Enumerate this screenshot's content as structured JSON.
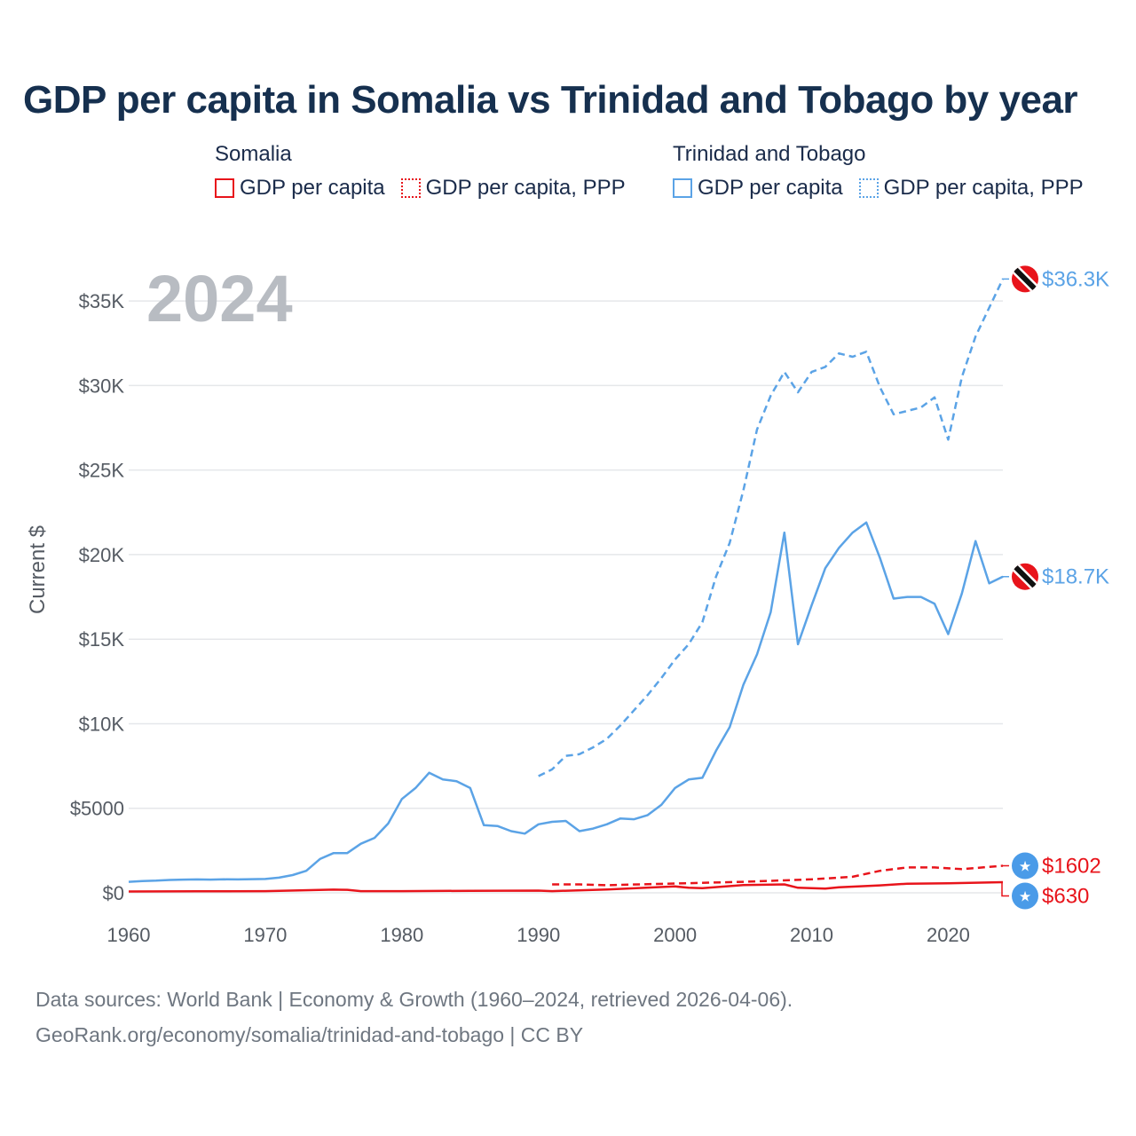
{
  "title": "GDP per capita in Somalia vs Trinidad and Tobago by year",
  "legend": {
    "somalia": {
      "name": "Somalia",
      "gdp": "GDP per capita",
      "ppp": "GDP per capita, PPP",
      "color": "#e8141b"
    },
    "tt": {
      "name": "Trinidad and Tobago",
      "gdp": "GDP per capita",
      "ppp": "GDP per capita, PPP",
      "color": "#5ba3e6"
    }
  },
  "footer": {
    "line1": "Data sources: World Bank | Economy & Growth (1960–2024, retrieved 2026-04-06).",
    "line2": "GeoRank.org/economy/somalia/trinidad-and-tobago | CC BY"
  },
  "chart_data": {
    "type": "line",
    "title": "GDP per capita in Somalia vs Trinidad and Tobago by year",
    "year_label": "2024",
    "ylabel": "Current $",
    "xlabel": "",
    "xlim": [
      1960,
      2024
    ],
    "ylim": [
      0,
      37000
    ],
    "x_ticks": [
      "1960",
      "1970",
      "1980",
      "1990",
      "2000",
      "2010",
      "2020"
    ],
    "y_ticks": [
      {
        "value": 0,
        "label": "$0"
      },
      {
        "value": 5000,
        "label": "$5000"
      },
      {
        "value": 10000,
        "label": "$10K"
      },
      {
        "value": 15000,
        "label": "$15K"
      },
      {
        "value": 20000,
        "label": "$20K"
      },
      {
        "value": 25000,
        "label": "$25K"
      },
      {
        "value": 30000,
        "label": "$30K"
      },
      {
        "value": 35000,
        "label": "$35K"
      }
    ],
    "grid": true,
    "series": [
      {
        "name": "Trinidad and Tobago — GDP per capita",
        "country": "tt",
        "style": "solid",
        "color": "#5ba3e6",
        "end_label": "$18.7K",
        "x": [
          1960,
          1961,
          1962,
          1963,
          1964,
          1965,
          1966,
          1967,
          1968,
          1969,
          1970,
          1971,
          1972,
          1973,
          1974,
          1975,
          1976,
          1977,
          1978,
          1979,
          1980,
          1981,
          1982,
          1983,
          1984,
          1985,
          1986,
          1987,
          1988,
          1989,
          1990,
          1991,
          1992,
          1993,
          1994,
          1995,
          1996,
          1997,
          1998,
          1999,
          2000,
          2001,
          2002,
          2003,
          2004,
          2005,
          2006,
          2007,
          2008,
          2009,
          2010,
          2011,
          2012,
          2013,
          2014,
          2015,
          2016,
          2017,
          2018,
          2019,
          2020,
          2021,
          2022,
          2023,
          2024
        ],
        "values": [
          650,
          700,
          720,
          760,
          780,
          790,
          780,
          800,
          790,
          810,
          820,
          900,
          1050,
          1300,
          2000,
          2350,
          2350,
          2900,
          3250,
          4100,
          5550,
          6200,
          7100,
          6700,
          6600,
          6200,
          4000,
          3950,
          3650,
          3500,
          4050,
          4200,
          4250,
          3650,
          3800,
          4050,
          4400,
          4350,
          4600,
          5200,
          6200,
          6700,
          6800,
          8400,
          9800,
          12300,
          14100,
          16600,
          21300,
          14700,
          17000,
          19200,
          20400,
          21300,
          21900,
          19800,
          17400,
          17500,
          17500,
          17100,
          15300,
          17700,
          20800,
          18300,
          18700
        ]
      },
      {
        "name": "Trinidad and Tobago — GDP per capita, PPP",
        "country": "tt",
        "style": "dashed",
        "color": "#5ba3e6",
        "end_label": "$36.3K",
        "x": [
          1990,
          1991,
          1992,
          1993,
          1994,
          1995,
          1996,
          1997,
          1998,
          1999,
          2000,
          2001,
          2002,
          2003,
          2004,
          2005,
          2006,
          2007,
          2008,
          2009,
          2010,
          2011,
          2012,
          2013,
          2014,
          2015,
          2016,
          2017,
          2018,
          2019,
          2020,
          2021,
          2022,
          2023,
          2024
        ],
        "values": [
          6900,
          7300,
          8100,
          8200,
          8600,
          9100,
          9900,
          10800,
          11700,
          12700,
          13800,
          14700,
          16000,
          18700,
          20700,
          23800,
          27400,
          29400,
          30800,
          29600,
          30800,
          31100,
          31900,
          31700,
          32000,
          29900,
          28300,
          28500,
          28700,
          29300,
          26800,
          30500,
          32900,
          34600,
          36300
        ]
      },
      {
        "name": "Somalia — GDP per capita",
        "country": "somalia",
        "style": "solid",
        "color": "#e8141b",
        "end_label": "$630",
        "x": [
          1960,
          1965,
          1970,
          1975,
          1976,
          1977,
          1980,
          1985,
          1990,
          1991,
          1995,
          2000,
          2001,
          2002,
          2005,
          2008,
          2009,
          2011,
          2012,
          2015,
          2017,
          2020,
          2024
        ],
        "values": [
          80,
          90,
          100,
          190,
          180,
          100,
          100,
          120,
          130,
          100,
          200,
          380,
          300,
          280,
          460,
          500,
          300,
          250,
          330,
          440,
          540,
          560,
          630
        ]
      },
      {
        "name": "Somalia — GDP per capita, PPP",
        "country": "somalia",
        "style": "dashed",
        "color": "#e8141b",
        "end_label": "$1602",
        "x": [
          1991,
          1993,
          1995,
          2000,
          2005,
          2010,
          2013,
          2015,
          2017,
          2019,
          2021,
          2024
        ],
        "values": [
          500,
          500,
          450,
          550,
          650,
          800,
          950,
          1300,
          1500,
          1500,
          1400,
          1602
        ]
      }
    ]
  }
}
